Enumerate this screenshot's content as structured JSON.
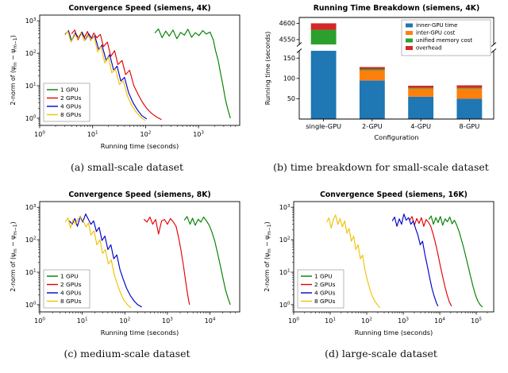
{
  "figure": {
    "captions": {
      "a": "(a) small-scale dataset",
      "b": "(b) time breakdown for small-scale dataset",
      "c": "(c) medium-scale dataset",
      "d": "(d) large-scale dataset"
    }
  },
  "chart_data": [
    {
      "id": "a",
      "type": "line",
      "title": "Convergence Speed (siemens, 4K)",
      "xlabel": "Running time (seconds)",
      "ylabel": "2-norm of (ψm − ψm−1)",
      "ylabel_parts": [
        [
          "2-norm of (ψ",
          0
        ],
        [
          "m",
          1
        ],
        [
          " − ψ",
          0
        ],
        [
          "m−1",
          1
        ],
        [
          ")",
          0
        ]
      ],
      "xscale": "log",
      "yscale": "log",
      "xlim": [
        1,
        6000
      ],
      "ylim": [
        0.6,
        1500
      ],
      "legend_position": "lower-left",
      "series": [
        {
          "name": "1 GPU",
          "color": "#008000",
          "x": [
            150,
            175,
            205,
            240,
            280,
            330,
            390,
            460,
            540,
            630,
            740,
            870,
            1020,
            1200,
            1400,
            1650,
            1900,
            2100,
            2350,
            2600,
            2900,
            3200,
            3600,
            4000
          ],
          "y": [
            420,
            560,
            300,
            480,
            340,
            520,
            280,
            440,
            360,
            550,
            310,
            430,
            350,
            500,
            390,
            450,
            260,
            120,
            60,
            25,
            10,
            4,
            1.8,
            1.0
          ]
        },
        {
          "name": "2 GPUs",
          "color": "#e60000",
          "x": [
            4,
            4.6,
            5.3,
            6.1,
            7,
            8,
            9.2,
            10.5,
            12,
            14,
            16,
            19,
            22,
            26,
            30,
            36,
            42,
            50,
            60,
            72,
            86,
            105,
            130,
            160,
            200
          ],
          "y": [
            400,
            520,
            260,
            430,
            310,
            470,
            250,
            420,
            300,
            380,
            160,
            220,
            80,
            120,
            45,
            60,
            22,
            30,
            10,
            5.5,
            3.2,
            2.0,
            1.4,
            1.1,
            0.9
          ]
        },
        {
          "name": "4 GPUs",
          "color": "#0000cc",
          "x": [
            3,
            3.5,
            4,
            4.7,
            5.4,
            6.3,
            7.3,
            8.4,
            9.7,
            11,
            13,
            15,
            18,
            21,
            25,
            29,
            34,
            40,
            48,
            58,
            70,
            85,
            105
          ],
          "y": [
            380,
            500,
            240,
            420,
            300,
            450,
            260,
            400,
            280,
            340,
            130,
            180,
            60,
            90,
            30,
            40,
            14,
            18,
            6,
            3,
            1.8,
            1.2,
            0.95
          ]
        },
        {
          "name": "8 GPUs",
          "color": "#f2c200",
          "x": [
            3,
            3.4,
            3.9,
            4.5,
            5.2,
            6,
            7,
            8,
            9.3,
            10.7,
            12.4,
            14.4,
            17,
            20,
            23,
            27,
            32,
            38,
            45,
            54,
            65,
            80,
            98
          ],
          "y": [
            360,
            480,
            220,
            400,
            280,
            430,
            240,
            380,
            260,
            320,
            110,
            160,
            50,
            75,
            25,
            33,
            11,
            14,
            5,
            2.6,
            1.6,
            1.1,
            0.85
          ]
        }
      ]
    },
    {
      "id": "b",
      "type": "stacked-bar",
      "title": "Running Time Breakdown (siemens, 4K)",
      "xlabel": "Configuration",
      "ylabel": "Running time (seconds)",
      "broken_axis": true,
      "axis_lower": {
        "range": [
          0,
          168
        ],
        "ticks": [
          50,
          100,
          150
        ]
      },
      "axis_upper": {
        "range": [
          4535,
          4618
        ],
        "ticks": [
          4550,
          4600
        ]
      },
      "categories": [
        "single-GPU",
        "2-GPU",
        "4-GPU",
        "8-GPU"
      ],
      "legend_position": "upper-right",
      "series": [
        {
          "name": "inner-GPU time",
          "color": "#1f77b4",
          "values": [
            4450,
            95,
            55,
            50
          ]
        },
        {
          "name": "inter-GPU cost",
          "color": "#ff7f0e",
          "values": [
            0,
            25,
            20,
            25
          ]
        },
        {
          "name": "unified memory cost",
          "color": "#2ca02c",
          "values": [
            130,
            3,
            2,
            2
          ]
        },
        {
          "name": "overhead",
          "color": "#d62728",
          "values": [
            20,
            5,
            5,
            6
          ]
        }
      ]
    },
    {
      "id": "c",
      "type": "line",
      "title": "Convergence Speed (siemens, 8K)",
      "xlabel": "Running time (seconds)",
      "ylabel": "2-norm of (ψm − ψm−1)",
      "ylabel_parts": [
        [
          "2-norm of (ψ",
          0
        ],
        [
          "m",
          1
        ],
        [
          " − ψ",
          0
        ],
        [
          "m−1",
          1
        ],
        [
          ")",
          0
        ]
      ],
      "xscale": "log",
      "yscale": "log",
      "xlim": [
        1,
        50000
      ],
      "ylim": [
        0.6,
        1500
      ],
      "legend_position": "lower-left",
      "series": [
        {
          "name": "1 GPU",
          "color": "#008000",
          "x": [
            2500,
            2900,
            3400,
            3900,
            4500,
            5300,
            6100,
            7100,
            8300,
            9600,
            11000,
            13000,
            15000,
            17500,
            20000,
            23000,
            26500,
            30000
          ],
          "y": [
            400,
            520,
            300,
            460,
            280,
            430,
            350,
            500,
            380,
            280,
            180,
            90,
            40,
            16,
            7,
            3,
            1.6,
            1.0
          ]
        },
        {
          "name": "2 GPUs",
          "color": "#e60000",
          "x": [
            280,
            330,
            390,
            450,
            530,
            620,
            730,
            860,
            1000,
            1180,
            1380,
            1600,
            1850,
            2100,
            2400,
            2700,
            3000,
            3300
          ],
          "y": [
            430,
            350,
            500,
            300,
            420,
            150,
            380,
            420,
            300,
            450,
            350,
            260,
            110,
            45,
            15,
            5,
            2,
            1.0
          ]
        },
        {
          "name": "4 GPUs",
          "color": "#0000cc",
          "x": [
            5,
            5.8,
            6.7,
            7.7,
            9,
            10.3,
            12,
            14,
            16,
            18.5,
            21.5,
            25,
            29,
            34,
            40,
            47,
            55,
            65,
            77,
            92,
            110,
            135,
            165,
            200,
            250
          ],
          "y": [
            380,
            300,
            450,
            260,
            520,
            350,
            620,
            420,
            300,
            380,
            180,
            240,
            95,
            130,
            50,
            70,
            26,
            34,
            12,
            6,
            3.2,
            1.9,
            1.3,
            1.0,
            0.85
          ]
        },
        {
          "name": "8 GPUs",
          "color": "#f2c200",
          "x": [
            4,
            4.6,
            5.3,
            6.1,
            7,
            8,
            9.2,
            10.6,
            12.2,
            14,
            16,
            19,
            22,
            26,
            30,
            35,
            41,
            48,
            57,
            68,
            80,
            95,
            115,
            140
          ],
          "y": [
            350,
            470,
            230,
            420,
            300,
            450,
            500,
            380,
            250,
            330,
            140,
            190,
            70,
            100,
            38,
            50,
            18,
            24,
            8,
            4,
            2.2,
            1.4,
            1.0,
            0.8
          ]
        }
      ]
    },
    {
      "id": "d",
      "type": "line",
      "title": "Convergence Speed (siemens, 16K)",
      "xlabel": "Running time (seconds)",
      "ylabel": "2-norm of (ψm − ψm−1)",
      "ylabel_parts": [
        [
          "2-norm of (ψ",
          0
        ],
        [
          "m",
          1
        ],
        [
          " − ψ",
          0
        ],
        [
          "m−1",
          1
        ],
        [
          ")",
          0
        ]
      ],
      "xscale": "log",
      "yscale": "log",
      "xlim": [
        1,
        300000
      ],
      "ylim": [
        0.6,
        1500
      ],
      "legend_position": "lower-left",
      "series": [
        {
          "name": "1 GPU",
          "color": "#008000",
          "x": [
            5000,
            5800,
            6700,
            7800,
            9000,
            10400,
            12000,
            14000,
            16200,
            18800,
            21800,
            25200,
            29200,
            33800,
            39200,
            45400,
            52600,
            61000,
            70600,
            81800,
            94800,
            110000,
            127000,
            147000
          ],
          "y": [
            420,
            540,
            300,
            480,
            340,
            520,
            280,
            440,
            360,
            500,
            310,
            400,
            280,
            180,
            100,
            55,
            28,
            14,
            7,
            3.6,
            2.0,
            1.3,
            1.0,
            0.85
          ]
        },
        {
          "name": "2 GPUs",
          "color": "#e60000",
          "x": [
            1500,
            1740,
            2020,
            2340,
            2710,
            3140,
            3640,
            4220,
            4890,
            5670,
            6570,
            7610,
            8820,
            10200,
            11800,
            13700,
            15900,
            18400,
            21000
          ],
          "y": [
            400,
            520,
            280,
            450,
            320,
            480,
            260,
            420,
            350,
            260,
            150,
            80,
            38,
            17,
            8,
            3.8,
            2.0,
            1.2,
            0.9
          ]
        },
        {
          "name": "4 GPUs",
          "color": "#0000cc",
          "x": [
            500,
            580,
            670,
            780,
            900,
            1040,
            1200,
            1400,
            1620,
            1880,
            2180,
            2520,
            2920,
            3380,
            3920,
            4540,
            5260,
            6100,
            7060,
            8180,
            9000
          ],
          "y": [
            380,
            500,
            260,
            440,
            300,
            620,
            400,
            480,
            300,
            380,
            220,
            140,
            70,
            90,
            35,
            16,
            7,
            3.2,
            1.8,
            1.1,
            0.9
          ]
        },
        {
          "name": "8 GPUs",
          "color": "#f2c200",
          "x": [
            8,
            9.2,
            10.6,
            12.2,
            14,
            16.2,
            18.6,
            21.5,
            25,
            28.5,
            33,
            38,
            44,
            50,
            58,
            67,
            77,
            89,
            103,
            120,
            140,
            165,
            195,
            230
          ],
          "y": [
            350,
            470,
            230,
            420,
            580,
            300,
            450,
            250,
            380,
            160,
            220,
            90,
            130,
            50,
            70,
            26,
            34,
            12,
            6,
            3.2,
            1.9,
            1.3,
            1.0,
            0.8
          ]
        }
      ]
    }
  ]
}
